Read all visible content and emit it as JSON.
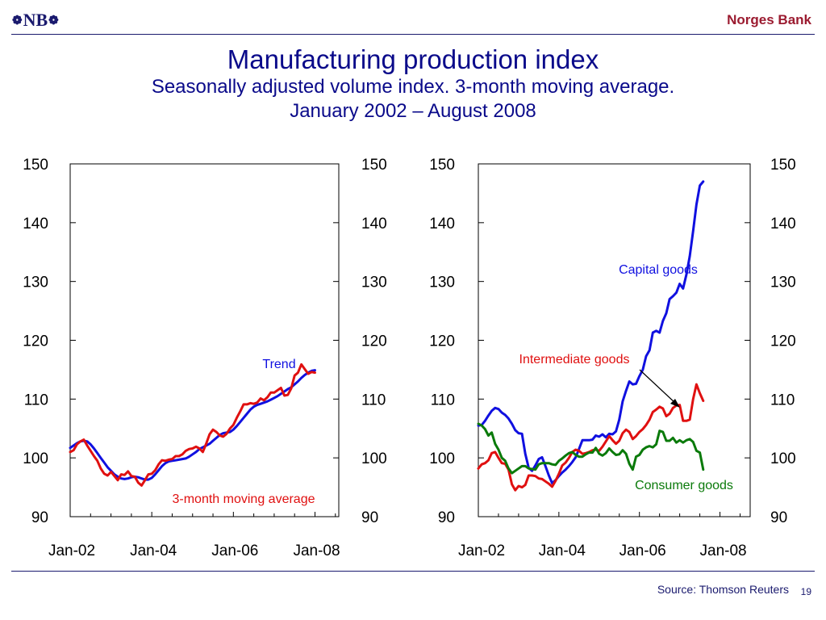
{
  "header": {
    "logo_text": "NB",
    "bank_name": "Norges Bank"
  },
  "title": "Manufacturing production index",
  "subtitle": "Seasonally adjusted volume index. 3-month moving average.",
  "subtitle2": "January 2002 – August 2008",
  "footer": {
    "source": "Source: Thomson Reuters",
    "page_number": "19"
  },
  "colors": {
    "blue": "#1010e0",
    "red": "#e01010",
    "green": "#0a7a0a",
    "title": "#0a0a8a"
  },
  "chart_data": [
    {
      "type": "line",
      "ylim": [
        90,
        150
      ],
      "y_ticks": [
        90,
        100,
        110,
        120,
        130,
        140,
        150
      ],
      "x_tick_labels": [
        "Jan-02",
        "Jan-04",
        "Jan-06",
        "Jan-08"
      ],
      "x_tick_months": [
        0,
        24,
        48,
        72
      ],
      "x_range_months": [
        0,
        79
      ],
      "annotations": [
        {
          "text": "Trend",
          "series": "Trend",
          "color": "#1010e0"
        },
        {
          "text": "3-month moving average",
          "series": "3-month moving average",
          "color": "#e01010"
        }
      ],
      "series": [
        {
          "name": "Trend",
          "color": "#1010e0",
          "values": [
            101.7,
            102.1,
            102.5,
            102.8,
            102.9,
            102.8,
            102.3,
            101.6,
            100.8,
            100.0,
            99.2,
            98.4,
            97.8,
            97.2,
            96.8,
            96.5,
            96.4,
            96.5,
            96.7,
            96.8,
            96.7,
            96.5,
            96.3,
            96.3,
            96.6,
            97.2,
            97.9,
            98.6,
            99.1,
            99.4,
            99.5,
            99.6,
            99.7,
            99.8,
            99.9,
            100.2,
            100.6,
            101.0,
            101.5,
            101.8,
            102.1,
            102.4,
            102.9,
            103.4,
            103.9,
            104.2,
            104.3,
            104.4,
            104.8,
            105.4,
            106.1,
            106.8,
            107.5,
            108.2,
            108.7,
            109.0,
            109.2,
            109.4,
            109.6,
            109.9,
            110.2,
            110.5,
            110.9,
            111.3,
            111.7,
            112.0,
            112.5,
            113.0,
            113.6,
            114.1,
            114.5,
            114.8,
            114.9
          ]
        },
        {
          "name": "3-month moving average",
          "color": "#e01010",
          "values": [
            101.0,
            101.3,
            102.3,
            102.8,
            103.1,
            102.1,
            101.2,
            100.3,
            99.5,
            98.2,
            97.3,
            97.0,
            97.6,
            96.9,
            96.2,
            97.2,
            97.1,
            97.7,
            96.9,
            96.8,
            95.8,
            95.3,
            96.2,
            97.2,
            97.3,
            97.9,
            98.9,
            99.6,
            99.5,
            99.7,
            99.8,
            100.3,
            100.3,
            100.6,
            101.2,
            101.5,
            101.6,
            101.9,
            101.6,
            101.0,
            102.4,
            104.0,
            104.8,
            104.4,
            103.8,
            103.6,
            104.1,
            105.0,
            105.6,
            106.8,
            107.9,
            109.1,
            109.1,
            109.3,
            109.2,
            109.4,
            110.1,
            109.8,
            110.3,
            111.1,
            111.1,
            111.5,
            111.9,
            110.6,
            110.7,
            111.8,
            114.0,
            114.5,
            115.9,
            115.1,
            114.3,
            114.6,
            114.5
          ]
        }
      ]
    },
    {
      "type": "line",
      "ylim": [
        90,
        150
      ],
      "y_ticks": [
        90,
        100,
        110,
        120,
        130,
        140,
        150
      ],
      "x_tick_labels": [
        "Jan-02",
        "Jan-04",
        "Jan-06",
        "Jan-08"
      ],
      "x_tick_months": [
        0,
        24,
        48,
        72
      ],
      "x_range_months": [
        0,
        81
      ],
      "annotations": [
        {
          "text": "Capital goods",
          "series": "Capital goods",
          "color": "#1010e0"
        },
        {
          "text": "Intermediate goods",
          "series": "Intermediate goods",
          "color": "#e01010"
        },
        {
          "text": "Consumer goods",
          "series": "Consumer goods",
          "color": "#0a7a0a"
        }
      ],
      "series": [
        {
          "name": "Capital goods",
          "color": "#1010e0",
          "values": [
            105.5,
            105.6,
            106.3,
            107.2,
            108.0,
            108.5,
            108.3,
            107.7,
            107.3,
            106.7,
            105.8,
            104.7,
            104.2,
            104.1,
            100.7,
            98.3,
            97.8,
            98.7,
            99.8,
            100.1,
            98.6,
            97.0,
            95.7,
            96.2,
            96.9,
            97.5,
            98.0,
            98.6,
            99.3,
            100.1,
            101.5,
            103.0,
            103.0,
            103.0,
            103.1,
            103.8,
            103.6,
            104.0,
            103.5,
            104.1,
            104.0,
            104.5,
            106.5,
            109.6,
            111.4,
            113.0,
            112.5,
            112.6,
            113.9,
            115.0,
            117.3,
            118.3,
            121.3,
            121.6,
            121.3,
            123.3,
            124.6,
            127.0,
            127.5,
            128.1,
            129.6,
            128.8,
            131.2,
            134.3,
            138.6,
            143.1,
            146.3,
            147.0
          ]
        },
        {
          "name": "Intermediate goods",
          "color": "#e01010",
          "values": [
            98.2,
            98.9,
            99.1,
            99.6,
            100.8,
            101.0,
            100.0,
            99.1,
            99.0,
            98.0,
            95.5,
            94.5,
            95.2,
            95.0,
            95.4,
            97.0,
            97.0,
            96.9,
            96.5,
            96.4,
            96.0,
            95.6,
            95.1,
            96.1,
            97.3,
            98.7,
            99.2,
            100.0,
            101.0,
            101.4,
            101.2,
            100.7,
            100.8,
            101.0,
            101.3,
            101.4,
            101.2,
            101.9,
            102.8,
            103.7,
            103.0,
            102.4,
            102.9,
            104.2,
            104.8,
            104.4,
            103.2,
            103.7,
            104.4,
            104.9,
            105.6,
            106.5,
            107.8,
            108.2,
            108.7,
            108.4,
            107.1,
            107.5,
            108.5,
            108.9,
            109.0,
            106.3,
            106.3,
            106.5,
            110.0,
            112.5,
            111.0,
            109.7
          ]
        },
        {
          "name": "Consumer goods",
          "color": "#0a7a0a",
          "values": [
            105.8,
            105.5,
            104.9,
            103.8,
            104.3,
            102.4,
            101.4,
            100.0,
            99.5,
            98.2,
            97.4,
            97.8,
            98.2,
            98.6,
            98.6,
            98.2,
            98.1,
            98.0,
            98.9,
            99.1,
            99.1,
            99.1,
            98.9,
            98.8,
            99.5,
            99.9,
            100.4,
            100.8,
            101.0,
            100.5,
            100.2,
            100.2,
            100.6,
            100.9,
            100.9,
            101.7,
            100.7,
            100.4,
            100.8,
            101.6,
            101.0,
            100.5,
            100.6,
            101.3,
            100.7,
            99.0,
            98.0,
            100.2,
            100.5,
            101.4,
            101.8,
            102.0,
            101.8,
            102.3,
            104.6,
            104.4,
            102.9,
            102.9,
            103.4,
            102.6,
            103.0,
            102.6,
            103.0,
            103.2,
            102.7,
            101.2,
            100.9,
            98.0
          ]
        }
      ]
    }
  ]
}
